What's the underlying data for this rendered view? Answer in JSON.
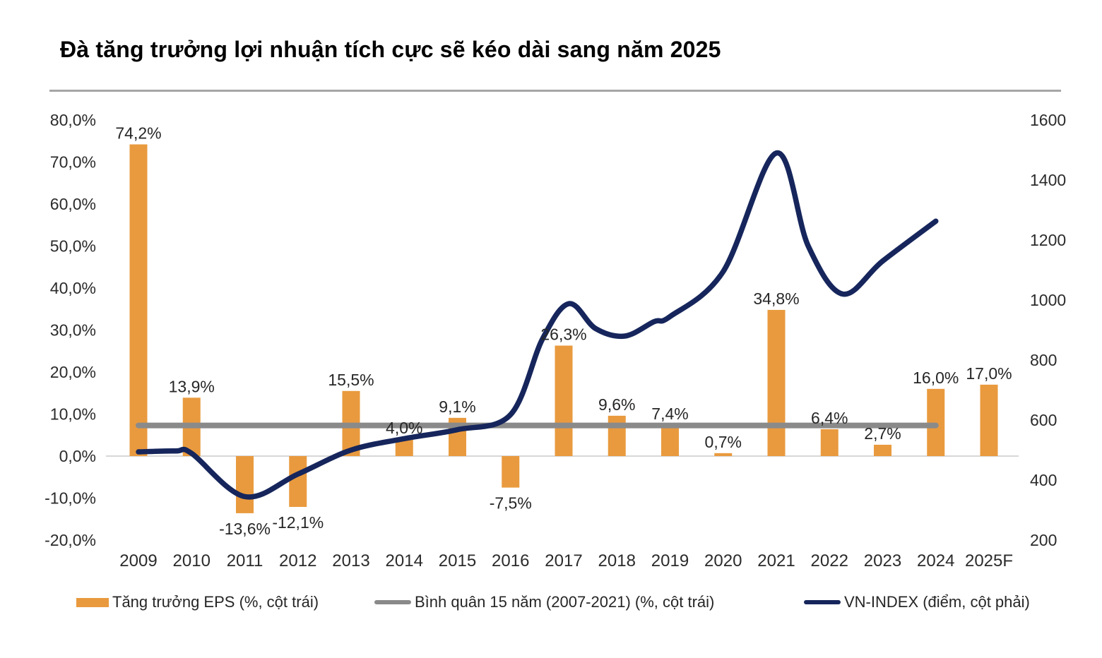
{
  "title": "Đà tăng trưởng lợi nhuận tích cực sẽ kéo dài sang năm 2025",
  "colors": {
    "bar": "#E99A3E",
    "vnindex_line": "#16265C",
    "average_line": "#8A8A8A",
    "zero_line": "#D8D8D8",
    "axis_text": "#2B2B2B",
    "label_text": "#262626",
    "divider": "#A6A6A6"
  },
  "chart_data": {
    "type": "combo-bar-line",
    "categories": [
      "2009",
      "2010",
      "2011",
      "2012",
      "2013",
      "2014",
      "2015",
      "2016",
      "2017",
      "2018",
      "2019",
      "2020",
      "2021",
      "2022",
      "2023",
      "2024",
      "2025F"
    ],
    "left_axis": {
      "min": -20,
      "max": 80,
      "tick_values": [
        80,
        70,
        60,
        50,
        40,
        30,
        20,
        10,
        0,
        -10,
        -20
      ],
      "tick_labels": [
        "80,0%",
        "70,0%",
        "60,0%",
        "50,0%",
        "40,0%",
        "30,0%",
        "20,0%",
        "10,0%",
        "0,0%",
        "-10,0%",
        "-20,0%"
      ]
    },
    "right_axis": {
      "min": 200,
      "max": 1600,
      "tick_values": [
        1600,
        1400,
        1200,
        1000,
        800,
        600,
        400,
        200
      ],
      "tick_labels": [
        "1600",
        "1400",
        "1200",
        "1000",
        "800",
        "600",
        "400",
        "200"
      ]
    },
    "grid": "zero-line-only",
    "legend_position": "bottom",
    "series": [
      {
        "name": "Tăng trưởng EPS (%, cột trái)",
        "type": "bar",
        "axis": "left",
        "values": [
          74.2,
          13.9,
          -13.6,
          -12.1,
          15.5,
          4.0,
          9.1,
          -7.5,
          26.3,
          9.6,
          7.4,
          0.7,
          34.8,
          6.4,
          2.7,
          16.0,
          17.0
        ],
        "value_labels": [
          "74,2%",
          "13,9%",
          "-13,6%",
          "-12,1%",
          "15,5%",
          "4,0%",
          "9,1%",
          "-7,5%",
          "26,3%",
          "9,6%",
          "7,4%",
          "0,7%",
          "34,8%",
          "6,4%",
          "2,7%",
          "16,0%",
          "17,0%"
        ]
      },
      {
        "name": "Bình quân 15 năm (2007-2021) (%, cột trái)",
        "type": "reference-line",
        "axis": "left",
        "value": 7.3,
        "span_category_start": "2009",
        "span_category_end": "2024"
      },
      {
        "name": "VN-INDEX (điểm, cột phải)",
        "type": "line",
        "axis": "right",
        "points": [
          {
            "x": 0.0,
            "v": 494
          },
          {
            "x": 0.7,
            "v": 497
          },
          {
            "x": 1.0,
            "v": 489
          },
          {
            "x": 2.0,
            "v": 345
          },
          {
            "x": 3.0,
            "v": 420
          },
          {
            "x": 4.0,
            "v": 500
          },
          {
            "x": 5.0,
            "v": 538
          },
          {
            "x": 6.0,
            "v": 568
          },
          {
            "x": 7.0,
            "v": 618
          },
          {
            "x": 7.6,
            "v": 870
          },
          {
            "x": 8.1,
            "v": 988
          },
          {
            "x": 8.6,
            "v": 905
          },
          {
            "x": 9.15,
            "v": 880
          },
          {
            "x": 9.7,
            "v": 928
          },
          {
            "x": 10.0,
            "v": 945
          },
          {
            "x": 11.0,
            "v": 1095
          },
          {
            "x": 12.0,
            "v": 1490
          },
          {
            "x": 12.6,
            "v": 1180
          },
          {
            "x": 13.25,
            "v": 1020
          },
          {
            "x": 14.0,
            "v": 1130
          },
          {
            "x": 15.0,
            "v": 1263
          }
        ]
      }
    ],
    "legend": [
      "Tăng trưởng EPS (%, cột trái)",
      "Bình quân 15 năm (2007-2021) (%, cột trái)",
      "VN-INDEX (điểm, cột phải)"
    ]
  }
}
